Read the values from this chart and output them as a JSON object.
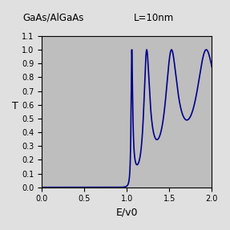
{
  "title_left": "GaAs/AlGaAs",
  "title_right": "L=10nm",
  "xlabel": "E/v0",
  "ylabel": "T",
  "xlim": [
    0,
    2
  ],
  "ylim": [
    0,
    1.1
  ],
  "xticks": [
    0,
    0.5,
    1,
    1.5,
    2
  ],
  "yticks": [
    0,
    0.1,
    0.2,
    0.3,
    0.4,
    0.5,
    0.6,
    0.7,
    0.8,
    0.9,
    1,
    1.1
  ],
  "line_color": "#00008B",
  "bg_color": "#BEBEBE",
  "fig_color": "#E0E0E0",
  "line_width": 1.2,
  "kL": 13.0,
  "mass_ratio": 0.4
}
